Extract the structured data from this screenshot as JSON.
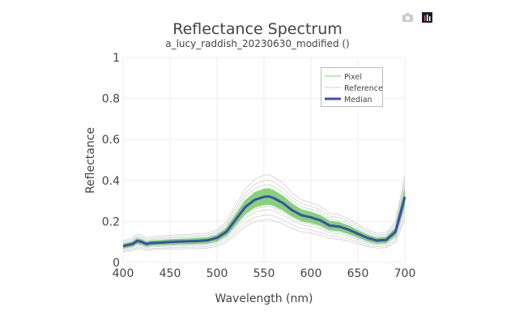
{
  "modebar": {
    "download_icon": "camera-icon",
    "logo_icon": "plotly-logo-icon"
  },
  "chart_data": {
    "type": "line",
    "title": "Reflectance Spectrum",
    "subtitle": "a_lucy_raddish_20230630_modified ()",
    "xlabel": "Wavelength (nm)",
    "ylabel": "Reflectance",
    "xlim": [
      400,
      700
    ],
    "ylim": [
      0,
      1
    ],
    "xticks": [
      "400",
      "450",
      "500",
      "550",
      "600",
      "650",
      "700"
    ],
    "yticks": [
      "0",
      "0.2",
      "0.4",
      "0.6",
      "0.8",
      "1"
    ],
    "grid": true,
    "legend": {
      "placement": "top-right",
      "entries": [
        "Pixel",
        "Reference",
        "Median"
      ]
    },
    "colors": {
      "pixel": "#7fcf72",
      "reference": "#d0d0d0",
      "median": "#3b4fb0"
    },
    "x": [
      400,
      410,
      415,
      420,
      425,
      430,
      440,
      450,
      460,
      470,
      480,
      490,
      500,
      510,
      520,
      530,
      540,
      550,
      555,
      560,
      570,
      580,
      590,
      600,
      610,
      620,
      630,
      640,
      650,
      660,
      670,
      680,
      690,
      700
    ],
    "median": [
      0.08,
      0.09,
      0.105,
      0.1,
      0.09,
      0.095,
      0.097,
      0.1,
      0.102,
      0.103,
      0.105,
      0.108,
      0.12,
      0.15,
      0.21,
      0.27,
      0.305,
      0.32,
      0.322,
      0.315,
      0.29,
      0.255,
      0.23,
      0.22,
      0.205,
      0.18,
      0.175,
      0.16,
      0.14,
      0.12,
      0.107,
      0.11,
      0.15,
      0.32
    ],
    "pixel_scales": [
      0.88,
      0.91,
      0.94,
      0.97,
      1.0,
      1.03,
      1.06,
      1.09,
      1.12
    ],
    "reference_scales": [
      0.65,
      0.72,
      0.8,
      0.85,
      1.18,
      1.25,
      1.33
    ]
  }
}
